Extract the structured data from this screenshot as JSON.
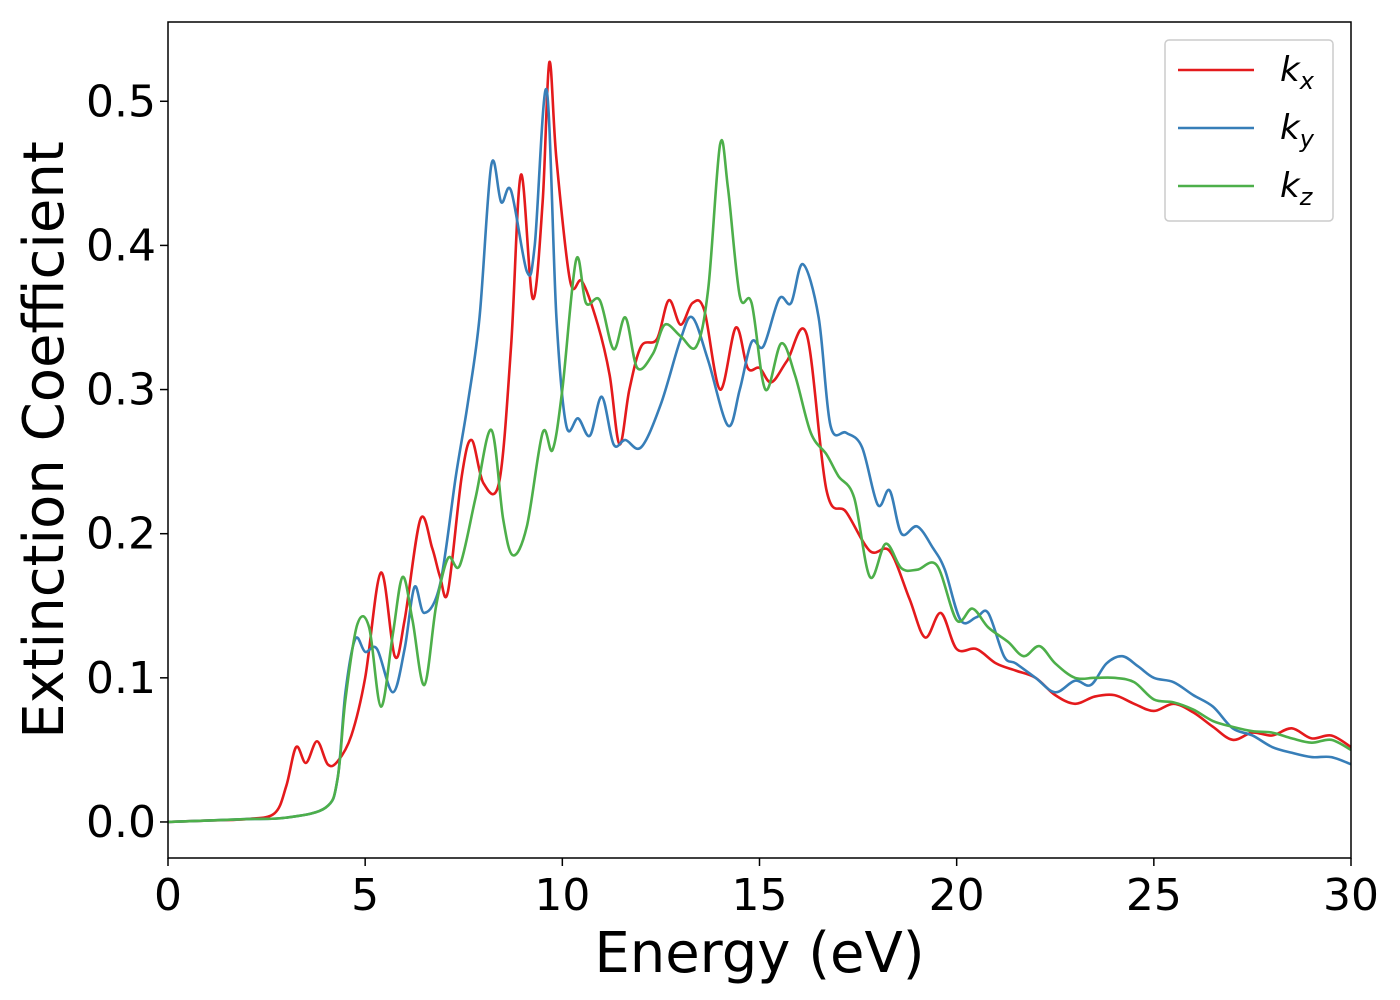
{
  "chart_data": {
    "type": "line",
    "title": "",
    "xlabel": "Energy (eV)",
    "ylabel": "Extinction Coefficient",
    "xlim": [
      0,
      30
    ],
    "ylim": [
      -0.025,
      0.555
    ],
    "xticks": [
      0,
      5,
      10,
      15,
      20,
      25,
      30
    ],
    "xtick_labels": [
      "0",
      "5",
      "10",
      "15",
      "20",
      "25",
      "30"
    ],
    "yticks": [
      0.0,
      0.1,
      0.2,
      0.3,
      0.4,
      0.5
    ],
    "ytick_labels": [
      "0.0",
      "0.1",
      "0.2",
      "0.3",
      "0.4",
      "0.5"
    ],
    "grid": false,
    "legend_position": "top-right",
    "series": [
      {
        "name": "k",
        "subscript": "x",
        "color": "#e41a1c",
        "points": [
          [
            0,
            0
          ],
          [
            1,
            0.001
          ],
          [
            2,
            0.002
          ],
          [
            2.7,
            0.006
          ],
          [
            3,
            0.025
          ],
          [
            3.25,
            0.052
          ],
          [
            3.5,
            0.041
          ],
          [
            3.78,
            0.056
          ],
          [
            4.05,
            0.04
          ],
          [
            4.3,
            0.042
          ],
          [
            4.65,
            0.06
          ],
          [
            5,
            0.1
          ],
          [
            5.4,
            0.173
          ],
          [
            5.75,
            0.115
          ],
          [
            6,
            0.14
          ],
          [
            6.4,
            0.21
          ],
          [
            6.7,
            0.19
          ],
          [
            6.9,
            0.17
          ],
          [
            7.1,
            0.16
          ],
          [
            7.45,
            0.24
          ],
          [
            7.7,
            0.265
          ],
          [
            8,
            0.235
          ],
          [
            8.4,
            0.236
          ],
          [
            8.7,
            0.33
          ],
          [
            8.95,
            0.449
          ],
          [
            9.25,
            0.363
          ],
          [
            9.5,
            0.43
          ],
          [
            9.67,
            0.527
          ],
          [
            9.85,
            0.46
          ],
          [
            10.2,
            0.375
          ],
          [
            10.5,
            0.375
          ],
          [
            10.9,
            0.345
          ],
          [
            11.2,
            0.31
          ],
          [
            11.45,
            0.262
          ],
          [
            11.7,
            0.3
          ],
          [
            12,
            0.33
          ],
          [
            12.4,
            0.335
          ],
          [
            12.7,
            0.362
          ],
          [
            13,
            0.345
          ],
          [
            13.3,
            0.36
          ],
          [
            13.6,
            0.355
          ],
          [
            14,
            0.3
          ],
          [
            14.4,
            0.343
          ],
          [
            14.7,
            0.315
          ],
          [
            15,
            0.315
          ],
          [
            15.3,
            0.305
          ],
          [
            15.7,
            0.32
          ],
          [
            16.2,
            0.338
          ],
          [
            16.7,
            0.23
          ],
          [
            17.2,
            0.215
          ],
          [
            17.8,
            0.188
          ],
          [
            18.3,
            0.188
          ],
          [
            18.8,
            0.155
          ],
          [
            19.2,
            0.128
          ],
          [
            19.6,
            0.145
          ],
          [
            20,
            0.12
          ],
          [
            20.5,
            0.12
          ],
          [
            21,
            0.11
          ],
          [
            21.5,
            0.105
          ],
          [
            22,
            0.1
          ],
          [
            22.5,
            0.088
          ],
          [
            23,
            0.082
          ],
          [
            23.5,
            0.087
          ],
          [
            24,
            0.088
          ],
          [
            24.5,
            0.082
          ],
          [
            25,
            0.077
          ],
          [
            25.5,
            0.082
          ],
          [
            26,
            0.076
          ],
          [
            26.5,
            0.066
          ],
          [
            27,
            0.057
          ],
          [
            27.5,
            0.062
          ],
          [
            28,
            0.06
          ],
          [
            28.5,
            0.065
          ],
          [
            29,
            0.058
          ],
          [
            29.5,
            0.06
          ],
          [
            30,
            0.052
          ]
        ]
      },
      {
        "name": "k",
        "subscript": "y",
        "color": "#377eb8",
        "points": [
          [
            0,
            0
          ],
          [
            1,
            0.001
          ],
          [
            2,
            0.002
          ],
          [
            3,
            0.003
          ],
          [
            4,
            0.01
          ],
          [
            4.3,
            0.03
          ],
          [
            4.5,
            0.09
          ],
          [
            4.75,
            0.127
          ],
          [
            5,
            0.118
          ],
          [
            5.3,
            0.12
          ],
          [
            5.7,
            0.09
          ],
          [
            6,
            0.12
          ],
          [
            6.25,
            0.163
          ],
          [
            6.5,
            0.145
          ],
          [
            6.9,
            0.165
          ],
          [
            7.3,
            0.24
          ],
          [
            7.6,
            0.29
          ],
          [
            7.9,
            0.35
          ],
          [
            8.2,
            0.456
          ],
          [
            8.45,
            0.43
          ],
          [
            8.7,
            0.438
          ],
          [
            9.1,
            0.382
          ],
          [
            9.3,
            0.4
          ],
          [
            9.6,
            0.508
          ],
          [
            9.85,
            0.35
          ],
          [
            10.1,
            0.275
          ],
          [
            10.4,
            0.28
          ],
          [
            10.7,
            0.268
          ],
          [
            11,
            0.295
          ],
          [
            11.3,
            0.262
          ],
          [
            11.6,
            0.265
          ],
          [
            12,
            0.26
          ],
          [
            12.5,
            0.29
          ],
          [
            13,
            0.335
          ],
          [
            13.3,
            0.35
          ],
          [
            13.7,
            0.32
          ],
          [
            14.2,
            0.275
          ],
          [
            14.5,
            0.3
          ],
          [
            14.8,
            0.333
          ],
          [
            15.1,
            0.33
          ],
          [
            15.5,
            0.363
          ],
          [
            15.8,
            0.36
          ],
          [
            16.1,
            0.387
          ],
          [
            16.5,
            0.35
          ],
          [
            16.8,
            0.275
          ],
          [
            17.2,
            0.27
          ],
          [
            17.6,
            0.26
          ],
          [
            18,
            0.22
          ],
          [
            18.3,
            0.23
          ],
          [
            18.6,
            0.2
          ],
          [
            19,
            0.205
          ],
          [
            19.4,
            0.19
          ],
          [
            19.7,
            0.175
          ],
          [
            20.1,
            0.14
          ],
          [
            20.5,
            0.142
          ],
          [
            20.8,
            0.145
          ],
          [
            21.2,
            0.115
          ],
          [
            21.5,
            0.11
          ],
          [
            22,
            0.1
          ],
          [
            22.5,
            0.09
          ],
          [
            23,
            0.098
          ],
          [
            23.4,
            0.095
          ],
          [
            23.8,
            0.11
          ],
          [
            24.2,
            0.115
          ],
          [
            24.6,
            0.108
          ],
          [
            25,
            0.1
          ],
          [
            25.5,
            0.097
          ],
          [
            26,
            0.088
          ],
          [
            26.5,
            0.08
          ],
          [
            27,
            0.065
          ],
          [
            27.5,
            0.06
          ],
          [
            28,
            0.052
          ],
          [
            28.5,
            0.048
          ],
          [
            29,
            0.045
          ],
          [
            29.5,
            0.045
          ],
          [
            30,
            0.04
          ]
        ]
      },
      {
        "name": "k",
        "subscript": "z",
        "color": "#4daf4a",
        "points": [
          [
            0,
            0
          ],
          [
            1,
            0.001
          ],
          [
            2,
            0.002
          ],
          [
            3,
            0.003
          ],
          [
            4,
            0.01
          ],
          [
            4.3,
            0.03
          ],
          [
            4.5,
            0.085
          ],
          [
            4.8,
            0.137
          ],
          [
            5.1,
            0.135
          ],
          [
            5.4,
            0.08
          ],
          [
            5.7,
            0.13
          ],
          [
            5.95,
            0.17
          ],
          [
            6.2,
            0.14
          ],
          [
            6.5,
            0.095
          ],
          [
            6.8,
            0.15
          ],
          [
            7.1,
            0.183
          ],
          [
            7.4,
            0.178
          ],
          [
            7.8,
            0.225
          ],
          [
            8.2,
            0.272
          ],
          [
            8.5,
            0.21
          ],
          [
            8.75,
            0.185
          ],
          [
            9.1,
            0.205
          ],
          [
            9.5,
            0.27
          ],
          [
            9.75,
            0.258
          ],
          [
            10,
            0.3
          ],
          [
            10.35,
            0.39
          ],
          [
            10.6,
            0.36
          ],
          [
            10.95,
            0.362
          ],
          [
            11.3,
            0.328
          ],
          [
            11.6,
            0.35
          ],
          [
            11.9,
            0.315
          ],
          [
            12.3,
            0.325
          ],
          [
            12.6,
            0.345
          ],
          [
            13,
            0.337
          ],
          [
            13.4,
            0.33
          ],
          [
            13.7,
            0.37
          ],
          [
            14,
            0.47
          ],
          [
            14.2,
            0.44
          ],
          [
            14.5,
            0.365
          ],
          [
            14.8,
            0.36
          ],
          [
            15.15,
            0.3
          ],
          [
            15.55,
            0.332
          ],
          [
            15.9,
            0.31
          ],
          [
            16.3,
            0.27
          ],
          [
            16.7,
            0.255
          ],
          [
            17,
            0.24
          ],
          [
            17.4,
            0.225
          ],
          [
            17.8,
            0.17
          ],
          [
            18.2,
            0.193
          ],
          [
            18.6,
            0.176
          ],
          [
            19,
            0.175
          ],
          [
            19.5,
            0.178
          ],
          [
            20,
            0.14
          ],
          [
            20.4,
            0.148
          ],
          [
            20.8,
            0.135
          ],
          [
            21.3,
            0.125
          ],
          [
            21.7,
            0.115
          ],
          [
            22.1,
            0.122
          ],
          [
            22.5,
            0.11
          ],
          [
            23,
            0.1
          ],
          [
            23.5,
            0.1
          ],
          [
            24,
            0.1
          ],
          [
            24.5,
            0.097
          ],
          [
            25,
            0.085
          ],
          [
            25.5,
            0.083
          ],
          [
            26,
            0.078
          ],
          [
            26.5,
            0.07
          ],
          [
            27,
            0.066
          ],
          [
            27.5,
            0.063
          ],
          [
            28,
            0.062
          ],
          [
            28.5,
            0.058
          ],
          [
            29,
            0.055
          ],
          [
            29.5,
            0.057
          ],
          [
            30,
            0.05
          ]
        ]
      }
    ]
  }
}
